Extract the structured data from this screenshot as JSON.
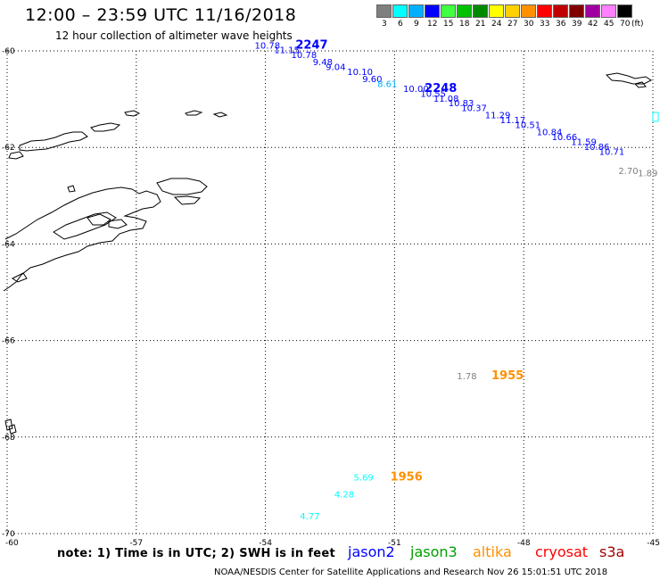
{
  "header": {
    "title": "12:00 – 23:59 UTC 11/16/2018",
    "subtitle": "12 hour collection of altimeter wave heights"
  },
  "colorbar": {
    "unit_label": "(ft)",
    "bins": [
      {
        "label": "3",
        "color": "#7f7f7f"
      },
      {
        "label": "6",
        "color": "#00ffff"
      },
      {
        "label": "9",
        "color": "#00b0ff"
      },
      {
        "label": "12",
        "color": "#0000ff"
      },
      {
        "label": "15",
        "color": "#40ff40"
      },
      {
        "label": "18",
        "color": "#00c000"
      },
      {
        "label": "21",
        "color": "#008a00"
      },
      {
        "label": "24",
        "color": "#ffff00"
      },
      {
        "label": "27",
        "color": "#ffd000"
      },
      {
        "label": "30",
        "color": "#ff9000"
      },
      {
        "label": "33",
        "color": "#ff0000"
      },
      {
        "label": "36",
        "color": "#c00000"
      },
      {
        "label": "39",
        "color": "#800000"
      },
      {
        "label": "42",
        "color": "#a000a0"
      },
      {
        "label": "45",
        "color": "#ff80ff"
      },
      {
        "label": "70",
        "color": "#000000"
      }
    ]
  },
  "map": {
    "lon_ticks": [
      -60,
      -57,
      -54,
      -51,
      -48,
      -45
    ],
    "lat_ticks": [
      -60,
      -62,
      -64,
      -66,
      -68,
      -70
    ],
    "lon_labels": [
      "-60",
      "-57",
      "-54",
      "-51",
      "-48",
      "-45"
    ],
    "lat_labels": [
      "-60",
      "-62",
      "-64",
      "-66",
      "-68",
      "-70"
    ],
    "swh_points": [
      {
        "label": "10.78",
        "lon": -54.25,
        "lat": -59.95,
        "color": "#0000ff"
      },
      {
        "label": "11.15",
        "lon": -53.8,
        "lat": -60.05,
        "color": "#0000ff"
      },
      {
        "label": "10.78",
        "lon": -53.4,
        "lat": -60.15,
        "color": "#0000ff"
      },
      {
        "label": "9.48",
        "lon": -52.9,
        "lat": -60.3,
        "color": "#0000ff"
      },
      {
        "label": "9.04",
        "lon": -52.6,
        "lat": -60.4,
        "color": "#0000ff"
      },
      {
        "label": "10.10",
        "lon": -52.1,
        "lat": -60.5,
        "color": "#0000ff"
      },
      {
        "label": "9.60",
        "lon": -51.75,
        "lat": -60.65,
        "color": "#0000ff"
      },
      {
        "label": "8.61",
        "lon": -51.4,
        "lat": -60.75,
        "color": "#00b0ff"
      },
      {
        "label": "10.00",
        "lon": -50.8,
        "lat": -60.85,
        "color": "#0000ff"
      },
      {
        "label": "10.55",
        "lon": -50.4,
        "lat": -60.95,
        "color": "#0000ff"
      },
      {
        "label": "11.08",
        "lon": -50.1,
        "lat": -61.05,
        "color": "#0000ff"
      },
      {
        "label": "10.83",
        "lon": -49.75,
        "lat": -61.15,
        "color": "#0000ff"
      },
      {
        "label": "10.37",
        "lon": -49.45,
        "lat": -61.25,
        "color": "#0000ff"
      },
      {
        "label": "11.29",
        "lon": -48.9,
        "lat": -61.4,
        "color": "#0000ff"
      },
      {
        "label": "11.17",
        "lon": -48.55,
        "lat": -61.5,
        "color": "#0000ff"
      },
      {
        "label": "10.51",
        "lon": -48.2,
        "lat": -61.6,
        "color": "#0000ff"
      },
      {
        "label": "10.84",
        "lon": -47.7,
        "lat": -61.75,
        "color": "#0000ff"
      },
      {
        "label": "10.66",
        "lon": -47.35,
        "lat": -61.85,
        "color": "#0000ff"
      },
      {
        "label": "11.59",
        "lon": -46.9,
        "lat": -61.95,
        "color": "#0000ff"
      },
      {
        "label": "10.86",
        "lon": -46.6,
        "lat": -62.05,
        "color": "#0000ff"
      },
      {
        "label": "10.71",
        "lon": -46.25,
        "lat": -62.15,
        "color": "#0000ff"
      },
      {
        "label": "2.70",
        "lon": -45.8,
        "lat": -62.55,
        "color": "#7f7f7f"
      },
      {
        "label": "1.89",
        "lon": -45.35,
        "lat": -62.6,
        "color": "#7f7f7f"
      },
      {
        "label": "1.78",
        "lon": -49.55,
        "lat": -66.8,
        "color": "#7f7f7f"
      },
      {
        "label": "5.69",
        "lon": -51.95,
        "lat": -68.9,
        "color": "#00ffff"
      },
      {
        "label": "4.28",
        "lon": -52.4,
        "lat": -69.25,
        "color": "#00ffff"
      },
      {
        "label": "4.77",
        "lon": -53.2,
        "lat": -69.7,
        "color": "#00ffff"
      }
    ],
    "pass_labels": [
      {
        "label": "2247",
        "lon": -53.3,
        "lat": -59.95,
        "color": "#0000ff"
      },
      {
        "label": "2248",
        "lon": -50.3,
        "lat": -60.85,
        "color": "#0000ff"
      },
      {
        "label": "1955",
        "lon": -48.75,
        "lat": -66.8,
        "color": "#ff9000"
      },
      {
        "label": "1956",
        "lon": -51.1,
        "lat": -68.9,
        "color": "#ff9000"
      }
    ]
  },
  "footer": {
    "note": "note:  1) Time is in UTC;  2) SWH is in feet",
    "satellites": [
      {
        "name": "jason2",
        "color": "#0000ff"
      },
      {
        "name": "jason3",
        "color": "#00a000"
      },
      {
        "name": "altika",
        "color": "#ff9000"
      },
      {
        "name": "cryosat",
        "color": "#ff0000"
      },
      {
        "name": "s3a",
        "color": "#a00000"
      }
    ],
    "credit": "NOAA/NESDIS Center for Satellite Applications and Research     Nov 26 15:01:51 UTC 2018"
  }
}
